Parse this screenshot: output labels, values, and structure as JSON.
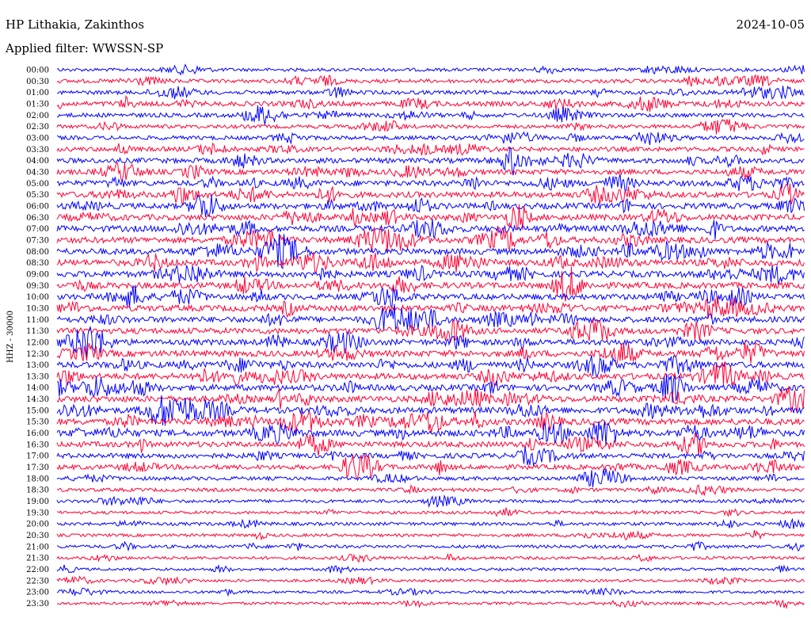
{
  "header": {
    "station": "HP Lithakia, Zakinthos",
    "filter": "Applied filter: WWSSN-SP",
    "date": "2024-10-05"
  },
  "chart_data": {
    "type": "line",
    "title": "HP Lithakia, Zakinthos",
    "subtitle": "Applied filter: WWSSN-SP",
    "date": "2024-10-05",
    "ylabel": "HHZ - 30000",
    "row_times": [
      "00:00",
      "00:30",
      "01:00",
      "01:30",
      "02:00",
      "02:30",
      "03:00",
      "03:30",
      "04:00",
      "04:30",
      "05:00",
      "05:30",
      "06:00",
      "06:30",
      "07:00",
      "07:30",
      "08:00",
      "08:30",
      "09:00",
      "09:30",
      "10:00",
      "10:30",
      "11:00",
      "11:30",
      "12:00",
      "12:30",
      "13:00",
      "13:30",
      "14:00",
      "14:30",
      "15:00",
      "15:30",
      "16:00",
      "16:30",
      "17:00",
      "17:30",
      "18:00",
      "18:30",
      "19:00",
      "19:30",
      "20:00",
      "20:30",
      "21:00",
      "21:30",
      "22:00",
      "22:30",
      "23:00",
      "23:30"
    ],
    "row_colors": [
      "#0000ff",
      "#ff0033"
    ],
    "row_activity": [
      0.25,
      0.35,
      0.4,
      0.55,
      0.45,
      0.35,
      0.4,
      0.5,
      0.6,
      0.6,
      0.7,
      0.75,
      0.75,
      0.75,
      0.8,
      0.8,
      0.8,
      0.85,
      0.8,
      0.8,
      0.75,
      0.8,
      0.75,
      0.75,
      0.75,
      0.8,
      0.8,
      0.8,
      0.8,
      0.8,
      0.8,
      0.85,
      0.85,
      0.7,
      0.6,
      0.55,
      0.35,
      0.3,
      0.25,
      0.2,
      0.25,
      0.2,
      0.25,
      0.2,
      0.15,
      0.15,
      0.15,
      0.15
    ],
    "grid": false,
    "legend": "none"
  }
}
